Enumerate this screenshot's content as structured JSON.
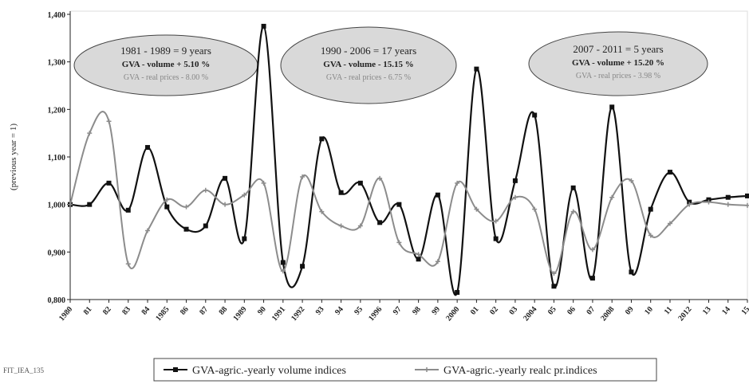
{
  "chart_data": {
    "type": "line",
    "y_label": "(previous year = 1)",
    "categories": [
      "1980",
      "81",
      "82",
      "83",
      "84",
      "1985",
      "86",
      "87",
      "88",
      "1989",
      "90",
      "1991",
      "1992",
      "93",
      "94",
      "95",
      "1996",
      "97",
      "98",
      "99",
      "2000",
      "01",
      "02",
      "03",
      "2004",
      "05",
      "06",
      "07",
      "2008",
      "09",
      "10",
      "11",
      "2012",
      "13",
      "14",
      "15"
    ],
    "series": [
      {
        "name": "GVA-agric.-yearly volume indices",
        "color": "#111111",
        "values": [
          1.0,
          1.0,
          1.045,
          0.988,
          1.12,
          0.995,
          0.948,
          0.955,
          1.055,
          0.928,
          1.375,
          0.878,
          0.87,
          1.138,
          1.025,
          1.045,
          0.962,
          1.0,
          0.885,
          1.02,
          0.815,
          1.285,
          0.928,
          1.05,
          1.188,
          0.828,
          1.035,
          0.845,
          1.205,
          0.858,
          0.99,
          1.068,
          1.005,
          1.01,
          1.015,
          1.018
        ]
      },
      {
        "name": "GVA-agric.-yearly realc pr.indices",
        "color": "#8c8c8c",
        "values": [
          1.0,
          1.15,
          1.175,
          0.875,
          0.945,
          1.01,
          0.995,
          1.03,
          1.0,
          1.02,
          1.045,
          0.86,
          1.058,
          0.985,
          0.955,
          0.955,
          1.055,
          0.92,
          0.895,
          0.88,
          1.045,
          0.99,
          0.965,
          1.015,
          0.99,
          0.855,
          0.985,
          0.905,
          1.015,
          1.05,
          0.935,
          0.96,
          1.0,
          1.005,
          1.0,
          0.998
        ]
      }
    ],
    "ylim": [
      0.8,
      1.4
    ],
    "yticks": [
      {
        "value": 0.8,
        "label": "0,800"
      },
      {
        "value": 0.9,
        "label": "0,900"
      },
      {
        "value": 1.0,
        "label": "1,000"
      },
      {
        "value": 1.1,
        "label": "1,100"
      },
      {
        "value": 1.2,
        "label": "1,200"
      },
      {
        "value": 1.3,
        "label": "1,300"
      },
      {
        "value": 1.4,
        "label": "1,400"
      }
    ],
    "grid": false,
    "annotations": [
      {
        "lines": [
          "1981 - 1989 = 9 years",
          "GVA - volume + 5.10 %",
          "GVA - real prices - 8.00 %"
        ]
      },
      {
        "lines": [
          "1990 - 2006 = 17 years",
          "GVA - volume - 15.15 %",
          "GVA - real prices - 6.75 %"
        ]
      },
      {
        "lines": [
          "2007 - 2011 = 5 years",
          "GVA - volume + 15.20 %",
          "GVA - real prices - 3.98 %"
        ]
      }
    ],
    "footnote": "FIT_IEA_135"
  }
}
